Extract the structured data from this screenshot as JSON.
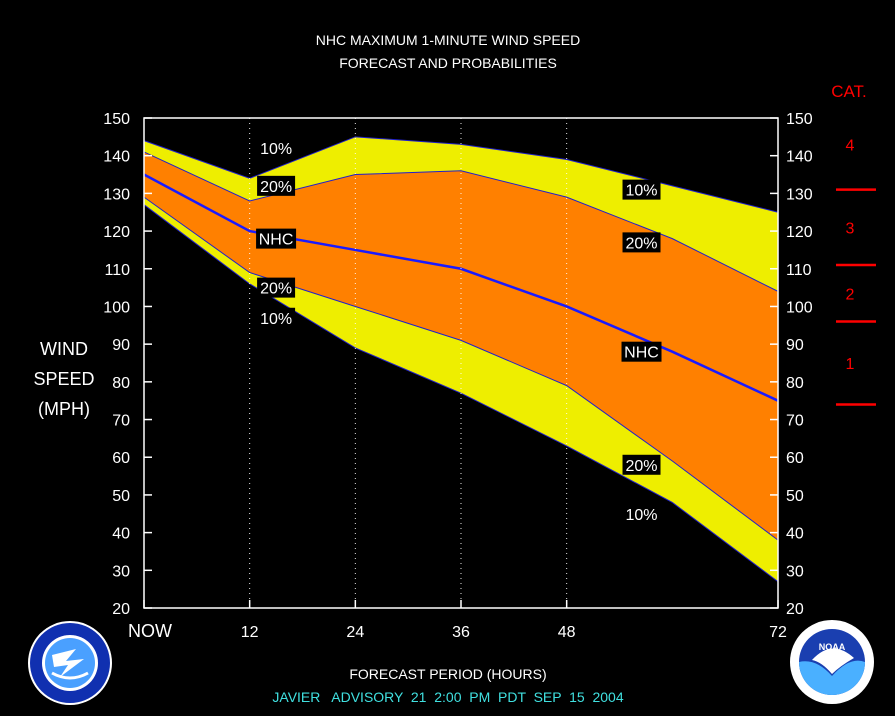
{
  "chart_data": {
    "type": "area",
    "title_line1": "NHC MAXIMUM 1-MINUTE WIND SPEED",
    "title_line2": "FORECAST AND PROBABILITIES",
    "xlabel": "FORECAST PERIOD (HOURS)",
    "ylabel_lines": [
      "WIND",
      "SPEED",
      "(MPH)"
    ],
    "footer": "JAVIER   ADVISORY  21  2:00  PM  PDT  SEP  15  2004",
    "xlim": [
      0,
      72
    ],
    "ylim": [
      20,
      150
    ],
    "yticks": [
      20,
      30,
      40,
      50,
      60,
      70,
      80,
      90,
      100,
      110,
      120,
      130,
      140,
      150
    ],
    "xticks": [
      {
        "value": 0,
        "label": "NOW"
      },
      {
        "value": 12,
        "label": "12"
      },
      {
        "value": 24,
        "label": "24"
      },
      {
        "value": 36,
        "label": "36"
      },
      {
        "value": 48,
        "label": "48"
      },
      {
        "value": 72,
        "label": "72"
      }
    ],
    "x": [
      0,
      12,
      24,
      36,
      48,
      60,
      72
    ],
    "series": [
      {
        "name": "10%",
        "role": "upper10",
        "values": [
          144,
          134,
          145,
          143,
          139,
          132,
          125
        ]
      },
      {
        "name": "20%",
        "role": "upper20",
        "values": [
          141,
          128,
          135,
          136,
          129,
          118,
          104
        ]
      },
      {
        "name": "NHC",
        "role": "nhc",
        "values": [
          135,
          120,
          115,
          110,
          100,
          88,
          75
        ]
      },
      {
        "name": "20%",
        "role": "lower20",
        "values": [
          129,
          109,
          100,
          91,
          79,
          59,
          38
        ]
      },
      {
        "name": "10%",
        "role": "lower10",
        "values": [
          127,
          106,
          89,
          77,
          63,
          48,
          27
        ]
      }
    ],
    "band_labels": [
      {
        "text": "10%",
        "x": 15,
        "y": 142
      },
      {
        "text": "20%",
        "x": 15,
        "y": 132
      },
      {
        "text": "NHC",
        "x": 15,
        "y": 118
      },
      {
        "text": "20%",
        "x": 15,
        "y": 105
      },
      {
        "text": "10%",
        "x": 15,
        "y": 97
      },
      {
        "text": "10%",
        "x": 56.5,
        "y": 131
      },
      {
        "text": "20%",
        "x": 56.5,
        "y": 117
      },
      {
        "text": "NHC",
        "x": 56.5,
        "y": 88
      },
      {
        "text": "20%",
        "x": 56.5,
        "y": 58
      },
      {
        "text": "10%",
        "x": 56.5,
        "y": 45
      }
    ],
    "categories_title": "CAT.",
    "category_thresholds": [
      74,
      96,
      111,
      131
    ],
    "category_labels": [
      {
        "label": "1",
        "y": 85
      },
      {
        "label": "2",
        "y": 103.5
      },
      {
        "label": "3",
        "y": 121
      },
      {
        "label": "4",
        "y": 143
      }
    ],
    "colors": {
      "band10": "#eeee00",
      "band20": "#ff8000",
      "nhc": "#1a1aff",
      "edge": "#2020cc",
      "category": "#ff0000",
      "footer": "#40e0e0"
    },
    "logos": {
      "left": "NATIONAL WEATHER SERVICE",
      "right": "NOAA"
    }
  }
}
